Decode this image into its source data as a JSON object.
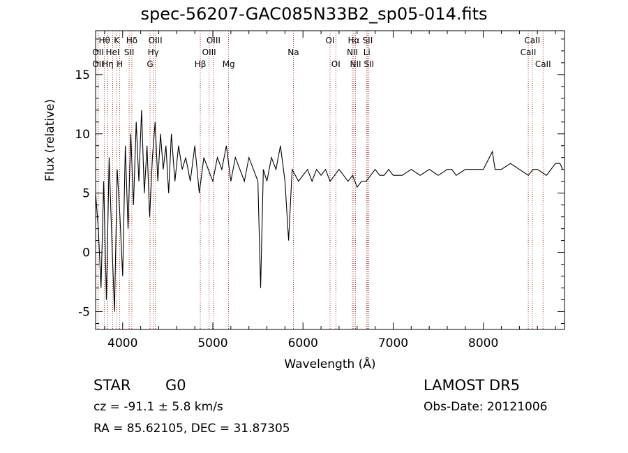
{
  "chart_data": {
    "type": "line",
    "title": "spec-56207-GAC085N33B2_sp05-014.fits",
    "xlabel": "Wavelength (Å)",
    "ylabel": "Flux (relative)",
    "xlim": [
      3700,
      8900
    ],
    "ylim": [
      -6.5,
      18.7
    ],
    "xticks": [
      4000,
      5000,
      6000,
      7000,
      8000
    ],
    "yticks": [
      -5,
      0,
      5,
      10,
      15
    ],
    "grid": false,
    "line_color": "#000000",
    "line_marker_color": "#8b0000",
    "series": [
      {
        "x": [
          3700,
          3730,
          3760,
          3790,
          3820,
          3850,
          3880,
          3910,
          3940,
          3970,
          4000,
          4030,
          4060,
          4090,
          4120,
          4150,
          4180,
          4210,
          4240,
          4270,
          4300,
          4330,
          4360,
          4390,
          4420,
          4450,
          4480,
          4510,
          4540,
          4560,
          4580,
          4620,
          4660,
          4700,
          4750,
          4800,
          4850,
          4900,
          4950,
          5000,
          5050,
          5100,
          5150,
          5200,
          5250,
          5300,
          5350,
          5400,
          5450,
          5500,
          5530,
          5560,
          5600,
          5650,
          5700,
          5750,
          5800,
          5840,
          5880,
          5950,
          6000,
          6050,
          6100,
          6150,
          6200,
          6250,
          6300,
          6350,
          6400,
          6450,
          6500,
          6550,
          6600,
          6650,
          6700,
          6750,
          6800,
          6850,
          6900,
          6950,
          7000,
          7100,
          7200,
          7300,
          7400,
          7500,
          7600,
          7650,
          7700,
          7800,
          7900,
          8000,
          8100,
          8130,
          8200,
          8300,
          8400,
          8500,
          8550,
          8600,
          8700,
          8800,
          8850,
          8880
        ],
        "y": [
          5,
          2,
          -3,
          6,
          -4,
          8,
          1,
          -5,
          7,
          3,
          -2,
          9,
          2,
          10,
          4,
          11,
          6,
          12,
          5,
          9,
          3,
          8,
          11,
          6,
          10,
          7,
          9,
          5,
          10,
          8,
          6,
          9,
          7,
          8,
          6,
          9,
          5,
          8,
          7,
          6,
          8,
          7,
          9,
          6,
          8,
          7,
          6,
          8,
          7,
          6,
          -3,
          7,
          6,
          8,
          7,
          9,
          6,
          1,
          7,
          6,
          6.5,
          7,
          6,
          7,
          6.5,
          7,
          6,
          6.5,
          7,
          6.5,
          6,
          6.5,
          5.5,
          6,
          6,
          6.5,
          7,
          6.5,
          6.5,
          7,
          6.5,
          6.5,
          7,
          6.5,
          7,
          6.5,
          7,
          7,
          6.5,
          7,
          7,
          7,
          8.5,
          7,
          7,
          7.5,
          7,
          6.5,
          7,
          7,
          6.5,
          7.5,
          7.5,
          7
        ]
      }
    ],
    "spectral_lines": [
      {
        "label": "Hθ",
        "x": 3798,
        "row": 1
      },
      {
        "label": "OII",
        "x": 3727,
        "row": 2
      },
      {
        "label": "OII",
        "x": 3727,
        "row": 3
      },
      {
        "label": "K",
        "x": 3934,
        "row": 1
      },
      {
        "label": "HeI",
        "x": 3889,
        "row": 2
      },
      {
        "label": "Hη",
        "x": 3835,
        "row": 3
      },
      {
        "label": "H",
        "x": 3968,
        "row": 3
      },
      {
        "label": "Hδ",
        "x": 4102,
        "row": 1
      },
      {
        "label": "SII",
        "x": 4072,
        "row": 2
      },
      {
        "label": "OIII",
        "x": 4363,
        "row": 1
      },
      {
        "label": "Hγ",
        "x": 4340,
        "row": 2
      },
      {
        "label": "G",
        "x": 4304,
        "row": 3
      },
      {
        "label": "OIII",
        "x": 5007,
        "row": 1
      },
      {
        "label": "OIII",
        "x": 4959,
        "row": 2
      },
      {
        "label": "Hβ",
        "x": 4861,
        "row": 3
      },
      {
        "label": "Mg",
        "x": 5175,
        "row": 3
      },
      {
        "label": "Na",
        "x": 5893,
        "row": 2
      },
      {
        "label": "OI",
        "x": 6300,
        "row": 1
      },
      {
        "label": "OI",
        "x": 6364,
        "row": 3
      },
      {
        "label": "Hα",
        "x": 6563,
        "row": 1
      },
      {
        "label": "SII",
        "x": 6717,
        "row": 1
      },
      {
        "label": "NII",
        "x": 6548,
        "row": 2
      },
      {
        "label": "Li",
        "x": 6708,
        "row": 2
      },
      {
        "label": "NII",
        "x": 6583,
        "row": 3
      },
      {
        "label": "SII",
        "x": 6731,
        "row": 3
      },
      {
        "label": "CaII",
        "x": 8542,
        "row": 1
      },
      {
        "label": "CaII",
        "x": 8498,
        "row": 2
      },
      {
        "label": "CaII",
        "x": 8662,
        "row": 3
      }
    ]
  },
  "info": {
    "object_class": "STAR",
    "subclass": "G0",
    "redshift": "cz = -91.1 ± 5.8 km/s",
    "coords": "RA =  85.62105, DEC =  31.87305",
    "survey": "LAMOST DR5",
    "obs_date": "Obs-Date: 20121006"
  }
}
